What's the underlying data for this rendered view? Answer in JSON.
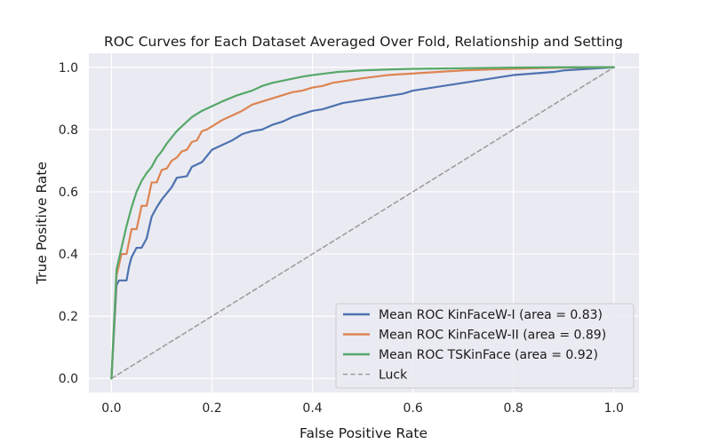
{
  "chart_data": {
    "type": "line",
    "title": "ROC Curves for Each Dataset Averaged Over Fold, Relationship and Setting",
    "xlabel": "False Positive Rate",
    "ylabel": "True Positive Rate",
    "xlim": [
      -0.045,
      1.05
    ],
    "ylim": [
      -0.045,
      1.045
    ],
    "xticks": [
      0.0,
      0.2,
      0.4,
      0.6,
      0.8,
      1.0
    ],
    "yticks": [
      0.0,
      0.2,
      0.4,
      0.6,
      0.8,
      1.0
    ],
    "xtick_labels": [
      "0.0",
      "0.2",
      "0.4",
      "0.6",
      "0.8",
      "1.0"
    ],
    "ytick_labels": [
      "0.0",
      "0.2",
      "0.4",
      "0.6",
      "0.8",
      "1.0"
    ],
    "grid": true,
    "legend_position": "lower-right",
    "series": [
      {
        "name": "Mean ROC KinFaceW-I (area = 0.83)",
        "color": "#4c72b0",
        "dashed": false,
        "x": [
          0.0,
          0.01,
          0.015,
          0.02,
          0.03,
          0.035,
          0.04,
          0.05,
          0.06,
          0.07,
          0.08,
          0.09,
          0.1,
          0.12,
          0.13,
          0.15,
          0.16,
          0.18,
          0.2,
          0.22,
          0.24,
          0.26,
          0.28,
          0.3,
          0.32,
          0.34,
          0.36,
          0.38,
          0.4,
          0.42,
          0.44,
          0.46,
          0.48,
          0.5,
          0.52,
          0.54,
          0.56,
          0.58,
          0.6,
          0.64,
          0.68,
          0.72,
          0.76,
          0.8,
          0.84,
          0.88,
          0.9,
          0.95,
          1.0
        ],
        "y": [
          0.0,
          0.3,
          0.315,
          0.315,
          0.315,
          0.36,
          0.39,
          0.42,
          0.42,
          0.45,
          0.52,
          0.55,
          0.575,
          0.615,
          0.645,
          0.65,
          0.68,
          0.695,
          0.735,
          0.75,
          0.765,
          0.785,
          0.795,
          0.8,
          0.815,
          0.825,
          0.84,
          0.85,
          0.86,
          0.865,
          0.875,
          0.885,
          0.89,
          0.895,
          0.9,
          0.905,
          0.91,
          0.915,
          0.925,
          0.935,
          0.945,
          0.955,
          0.965,
          0.975,
          0.98,
          0.985,
          0.99,
          0.995,
          1.0
        ]
      },
      {
        "name": "Mean ROC KinFaceW-II (area = 0.89)",
        "color": "#dd8452",
        "dashed": false,
        "x": [
          0.0,
          0.01,
          0.02,
          0.03,
          0.04,
          0.05,
          0.06,
          0.07,
          0.08,
          0.09,
          0.1,
          0.11,
          0.12,
          0.13,
          0.14,
          0.15,
          0.16,
          0.17,
          0.18,
          0.19,
          0.2,
          0.22,
          0.24,
          0.26,
          0.28,
          0.3,
          0.32,
          0.34,
          0.36,
          0.38,
          0.4,
          0.42,
          0.44,
          0.46,
          0.48,
          0.5,
          0.55,
          0.6,
          0.65,
          0.7,
          0.75,
          0.8,
          0.85,
          0.9,
          1.0
        ],
        "y": [
          0.0,
          0.33,
          0.4,
          0.4,
          0.48,
          0.48,
          0.555,
          0.555,
          0.63,
          0.63,
          0.67,
          0.675,
          0.7,
          0.71,
          0.73,
          0.735,
          0.76,
          0.765,
          0.795,
          0.8,
          0.81,
          0.83,
          0.845,
          0.86,
          0.88,
          0.89,
          0.9,
          0.91,
          0.92,
          0.925,
          0.935,
          0.94,
          0.95,
          0.955,
          0.96,
          0.965,
          0.975,
          0.98,
          0.985,
          0.99,
          0.993,
          0.995,
          0.997,
          0.999,
          1.0
        ]
      },
      {
        "name": "Mean ROC TSKinFace (area = 0.92)",
        "color": "#55a868",
        "dashed": false,
        "x": [
          0.0,
          0.01,
          0.02,
          0.03,
          0.04,
          0.05,
          0.06,
          0.07,
          0.08,
          0.09,
          0.1,
          0.11,
          0.12,
          0.13,
          0.14,
          0.15,
          0.16,
          0.17,
          0.18,
          0.2,
          0.22,
          0.25,
          0.28,
          0.3,
          0.32,
          0.35,
          0.38,
          0.4,
          0.45,
          0.5,
          0.55,
          0.6,
          0.7,
          0.8,
          0.9,
          1.0
        ],
        "y": [
          0.0,
          0.35,
          0.42,
          0.49,
          0.55,
          0.6,
          0.635,
          0.66,
          0.68,
          0.71,
          0.73,
          0.755,
          0.775,
          0.795,
          0.81,
          0.825,
          0.84,
          0.85,
          0.86,
          0.875,
          0.89,
          0.91,
          0.925,
          0.94,
          0.95,
          0.96,
          0.97,
          0.975,
          0.985,
          0.99,
          0.993,
          0.995,
          0.997,
          0.999,
          1.0,
          1.0
        ]
      },
      {
        "name": "Luck",
        "color": "#999999",
        "dashed": true,
        "x": [
          0.0,
          1.0
        ],
        "y": [
          0.0,
          1.0
        ]
      }
    ]
  }
}
